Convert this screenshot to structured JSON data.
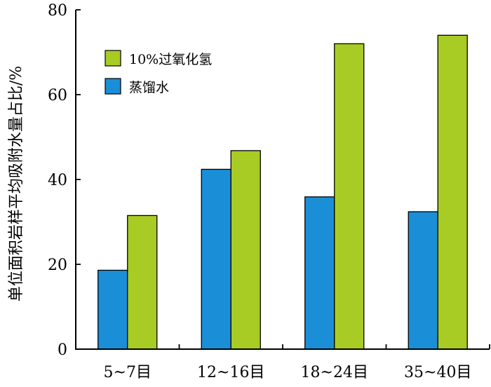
{
  "chart_data": {
    "type": "bar",
    "ylabel": "单位面积岩样平均吸附水量占比/%",
    "xlabel": "",
    "ylim": [
      0,
      80
    ],
    "yticks": [
      0,
      20,
      40,
      60,
      80
    ],
    "grid": false,
    "legend_position": "top-left",
    "categories": [
      "5~7目",
      "12~16目",
      "18~24目",
      "35~40目"
    ],
    "series": [
      {
        "name": "蒸馏水",
        "color": "#1a8fd8",
        "values": [
          18.6,
          42.4,
          35.9,
          32.4
        ]
      },
      {
        "name": "10%过氧化氢",
        "color": "#a8cc24",
        "values": [
          31.5,
          46.8,
          72.0,
          74.0
        ]
      }
    ],
    "legend_order": [
      1,
      0
    ]
  }
}
